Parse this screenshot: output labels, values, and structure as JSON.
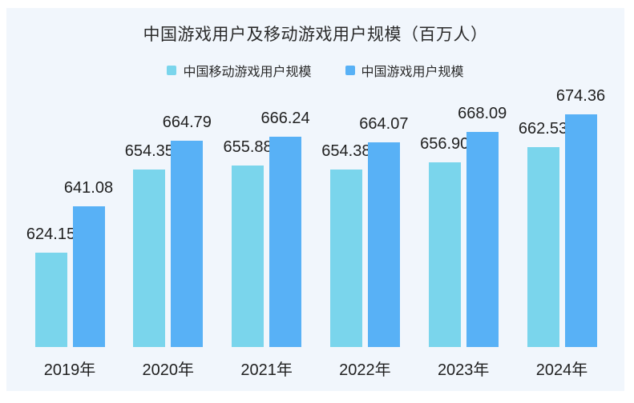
{
  "chart_data": {
    "type": "bar",
    "title": "中国游戏用户及移动游戏用户规模（百万人）",
    "categories": [
      "2019年",
      "2020年",
      "2021年",
      "2022年",
      "2023年",
      "2024年"
    ],
    "series": [
      {
        "name": "中国移动游戏用户规模",
        "color": "#7ad5ec",
        "values": [
          624.15,
          654.35,
          655.88,
          654.38,
          656.9,
          662.53
        ]
      },
      {
        "name": "中国游戏用户规模",
        "color": "#58b1f6",
        "values": [
          641.08,
          664.79,
          666.24,
          664.07,
          668.09,
          674.36
        ]
      }
    ],
    "ylim": [
      590,
      680
    ],
    "value_labels": true,
    "value_decimals": 2,
    "legend_position": "top",
    "grid": false,
    "axis_lines": false
  },
  "colors": {
    "frame_background": "#ffffff",
    "panel_background": "#f1f6fc",
    "text": "#212121"
  }
}
